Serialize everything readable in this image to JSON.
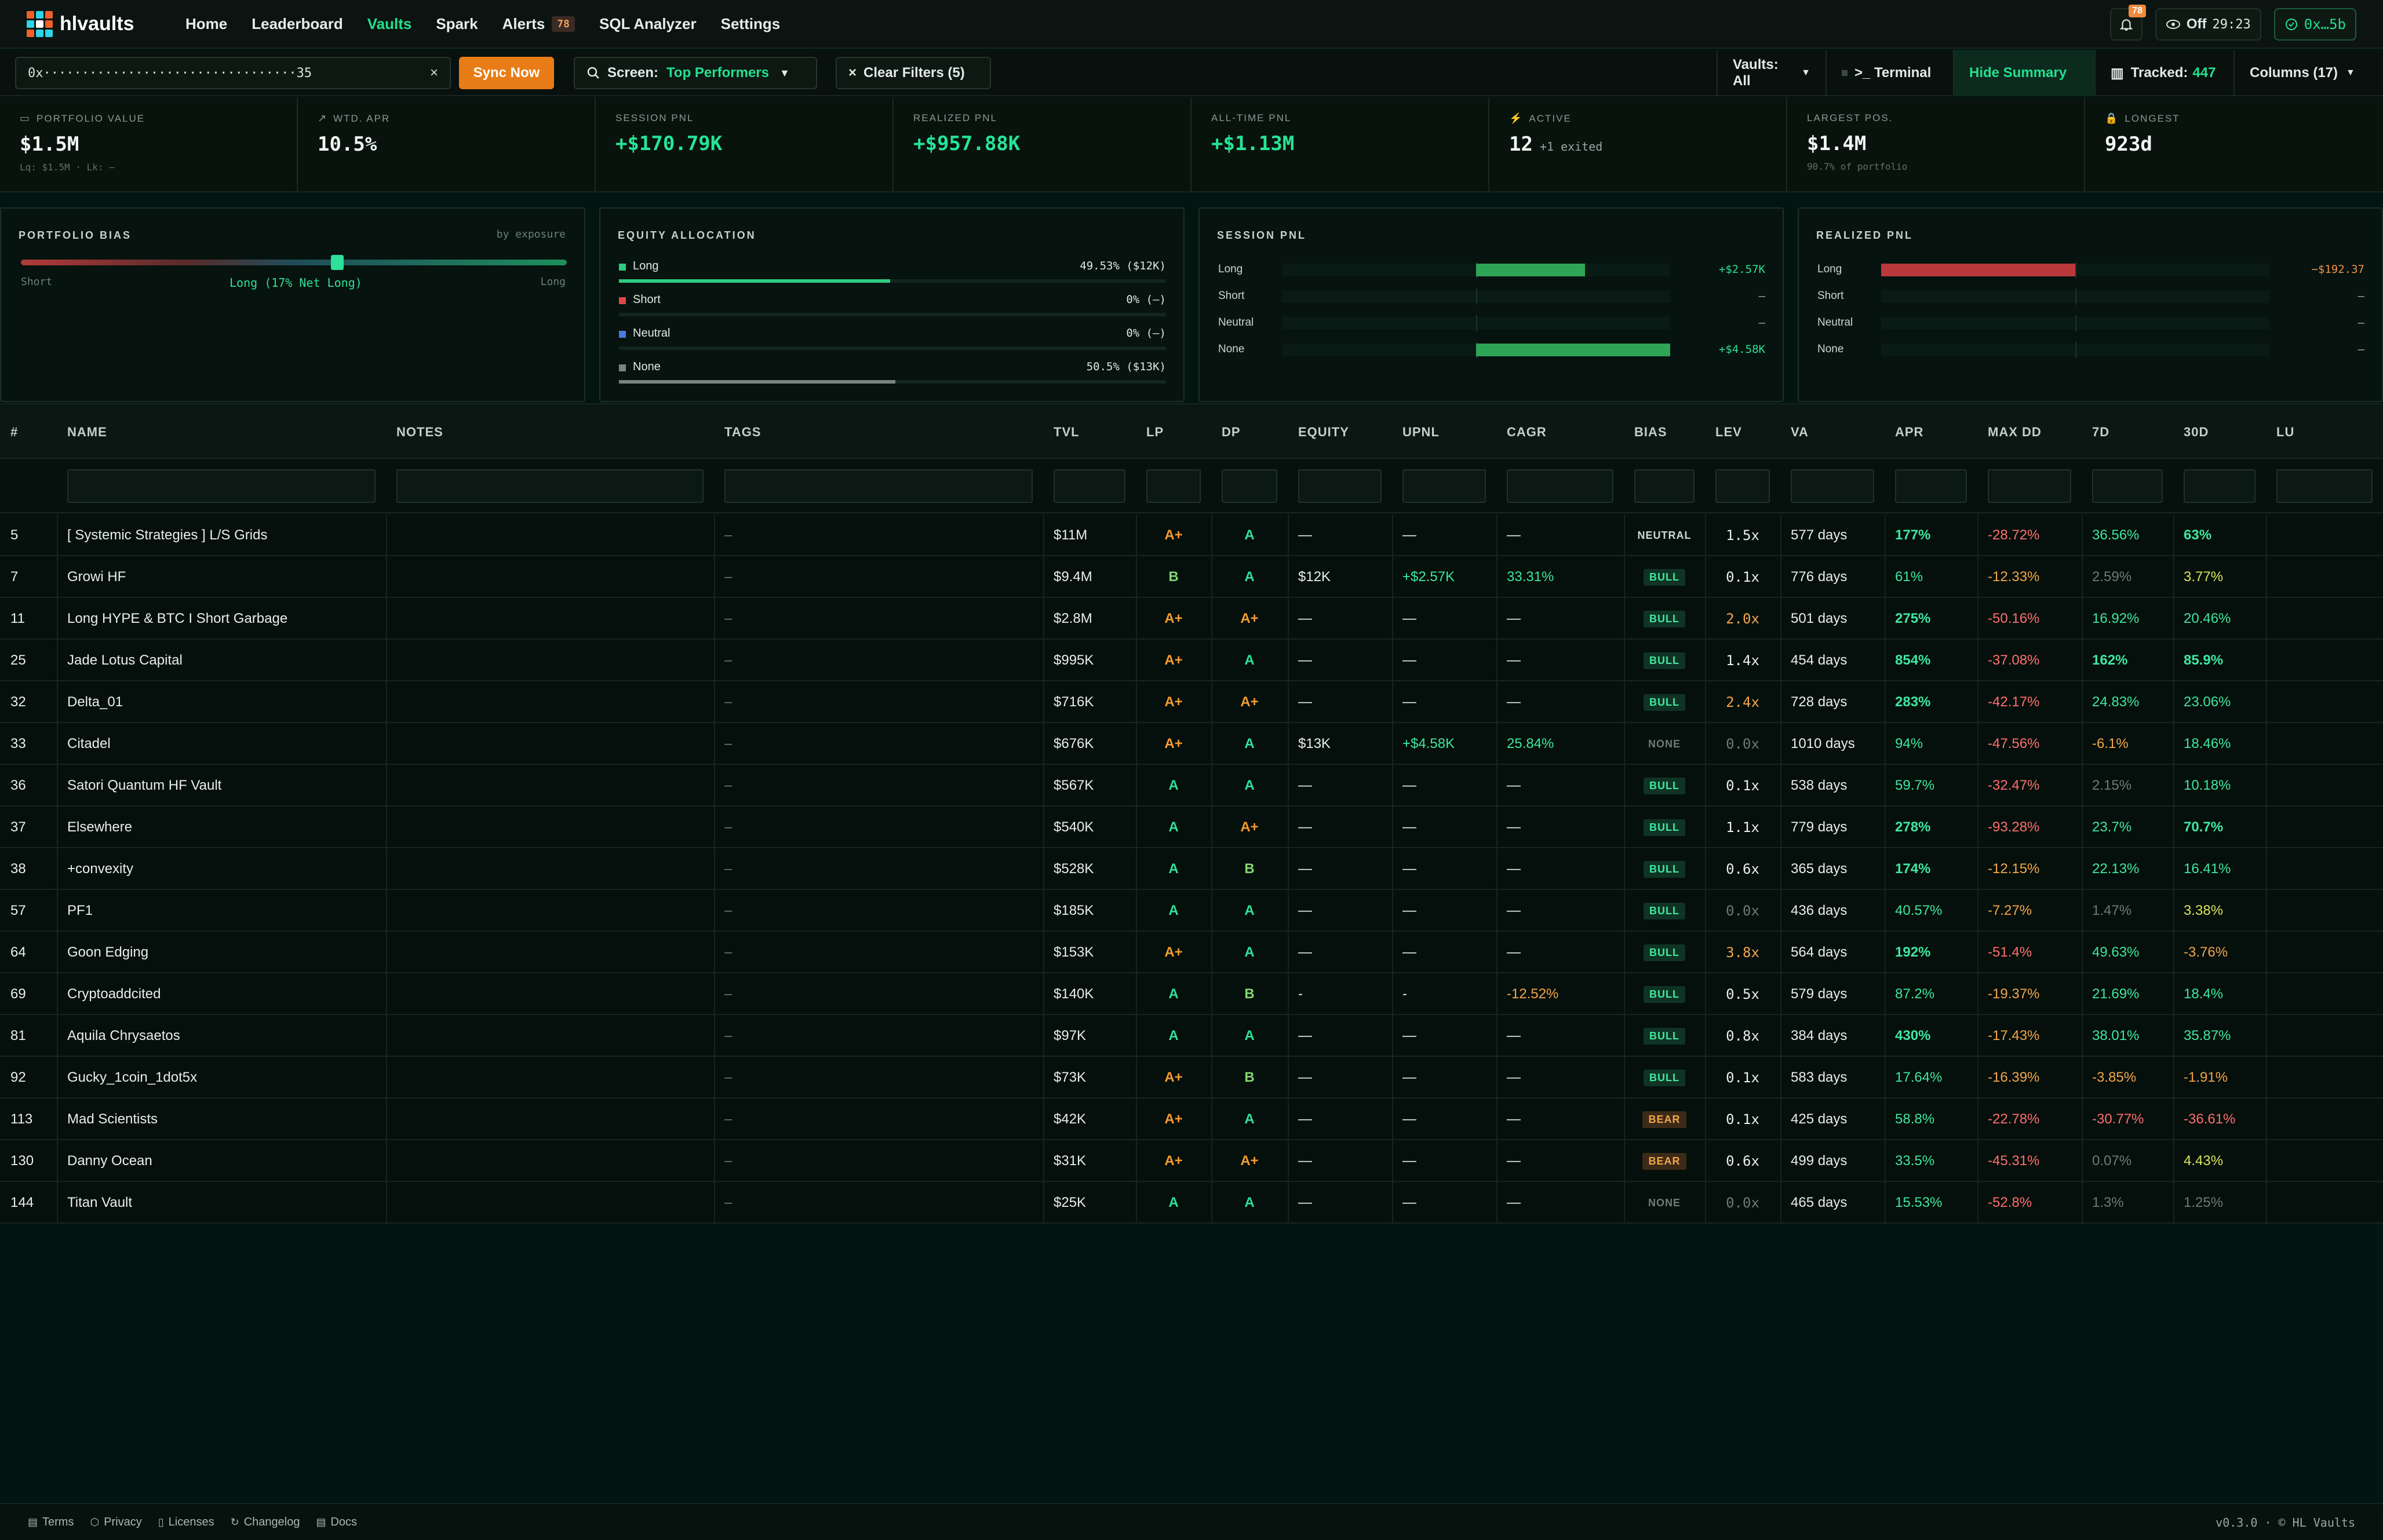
{
  "nav": {
    "brand": "hlvaults",
    "links": [
      {
        "label": "Home",
        "active": false
      },
      {
        "label": "Leaderboard",
        "active": false
      },
      {
        "label": "Vaults",
        "active": true
      },
      {
        "label": "Spark",
        "active": false
      },
      {
        "label": "Alerts",
        "active": false,
        "badge": "78"
      },
      {
        "label": "SQL Analyzer",
        "active": false
      },
      {
        "label": "Settings",
        "active": false
      }
    ],
    "bell_badge": "78",
    "timer_label": "Off",
    "timer_value": "29:23",
    "wallet": "0x…5b"
  },
  "toolbar": {
    "address_value": "0x·································35",
    "sync_label": "Sync Now",
    "screen_label": "Screen:",
    "screen_value": "Top Performers",
    "clear_label": "Clear Filters (5)",
    "vaults_label": "Vaults: All",
    "terminal_label": ">_ Terminal",
    "hide_summary_label": "Hide Summary",
    "tracked_label": "Tracked:",
    "tracked_value": "447",
    "columns_label": "Columns (17)"
  },
  "stats": [
    {
      "label": "PORTFOLIO VALUE",
      "value": "$1.5M",
      "sub": "Lq: $1.5M · Lk: —"
    },
    {
      "label": "WTD. APR",
      "value": "10.5%",
      "sub": ""
    },
    {
      "label": "SESSION PNL",
      "value": "+$170.79K",
      "sub": ""
    },
    {
      "label": "REALIZED PNL",
      "value": "+$957.88K",
      "sub": ""
    },
    {
      "label": "ALL-TIME PNL",
      "value": "+$1.13M",
      "sub": ""
    },
    {
      "label": "ACTIVE",
      "value": "12",
      "value_suffix": "+1 exited",
      "sub": ""
    },
    {
      "label": "LARGEST POS.",
      "value": "$1.4M",
      "sub": "90.7% of portfolio"
    },
    {
      "label": "LONGEST",
      "value": "923d",
      "sub": ""
    }
  ],
  "bias": {
    "title": "PORTFOLIO BIAS",
    "by": "by exposure",
    "left": "Short",
    "center": "Long (17% Net Long)",
    "right": "Long",
    "position": 0.58
  },
  "allocation": {
    "title": "EQUITY ALLOCATION",
    "rows": [
      {
        "label": "Long",
        "value": "49.53% ($12K)",
        "fill": 0.4953,
        "color": "#2ecb80"
      },
      {
        "label": "Short",
        "value": "0% (—)",
        "fill": 0,
        "color": "#e04848"
      },
      {
        "label": "Neutral",
        "value": "0% (—)",
        "fill": 0,
        "color": "#4a7ae0"
      },
      {
        "label": "None",
        "value": "50.5% ($13K)",
        "fill": 0.505,
        "color": "#7a8580"
      }
    ]
  },
  "session_pnl": {
    "title": "SESSION PNL",
    "rows": [
      {
        "label": "Long",
        "value": "+$2.57K",
        "amount": 2.57
      },
      {
        "label": "Short",
        "value": "—",
        "amount": 0
      },
      {
        "label": "Neutral",
        "value": "—",
        "amount": 0
      },
      {
        "label": "None",
        "value": "+$4.58K",
        "amount": 4.58
      }
    ]
  },
  "realized_pnl": {
    "title": "REALIZED PNL",
    "rows": [
      {
        "label": "Long",
        "value": "−$192.37",
        "amount": -192.37
      },
      {
        "label": "Short",
        "value": "—",
        "amount": 0
      },
      {
        "label": "Neutral",
        "value": "—",
        "amount": 0
      },
      {
        "label": "None",
        "value": "—",
        "amount": 0
      }
    ]
  },
  "table": {
    "headers": [
      "#",
      "NAME",
      "NOTES",
      "TAGS",
      "TVL",
      "LP",
      "DP",
      "EQUITY",
      "UPNL",
      "CAGR",
      "BIAS",
      "LEV",
      "VA",
      "APR",
      "MAX DD",
      "7D",
      "30D",
      "LU"
    ],
    "rows": [
      {
        "id": "5",
        "name": "[ Systemic Strategies ] L/S Grids",
        "tags": "–",
        "tvl": "$11M",
        "lp": "A+",
        "dp": "A",
        "equity": "—",
        "upnl": "—",
        "cagr": "—",
        "bias": "NEUTRAL",
        "lev": "1.5x",
        "va": "577 days",
        "apr": "177%",
        "maxdd": "-28.72%",
        "d7": "36.56%",
        "d30": "63%"
      },
      {
        "id": "7",
        "name": "Growi HF",
        "tags": "–",
        "tvl": "$9.4M",
        "lp": "B",
        "dp": "A",
        "equity": "$12K",
        "upnl": "+$2.57K",
        "cagr": "33.31%",
        "bias": "BULL",
        "lev": "0.1x",
        "va": "776 days",
        "apr": "61%",
        "maxdd": "-12.33%",
        "d7": "2.59%",
        "d30": "3.77%"
      },
      {
        "id": "11",
        "name": "Long HYPE & BTC I Short Garbage",
        "tags": "–",
        "tvl": "$2.8M",
        "lp": "A+",
        "dp": "A+",
        "equity": "—",
        "upnl": "—",
        "cagr": "—",
        "bias": "BULL",
        "lev": "2.0x",
        "va": "501 days",
        "apr": "275%",
        "maxdd": "-50.16%",
        "d7": "16.92%",
        "d30": "20.46%"
      },
      {
        "id": "25",
        "name": "Jade Lotus Capital",
        "tags": "–",
        "tvl": "$995K",
        "lp": "A+",
        "dp": "A",
        "equity": "—",
        "upnl": "—",
        "cagr": "—",
        "bias": "BULL",
        "lev": "1.4x",
        "va": "454 days",
        "apr": "854%",
        "maxdd": "-37.08%",
        "d7": "162%",
        "d30": "85.9%"
      },
      {
        "id": "32",
        "name": "Delta_01",
        "tags": "–",
        "tvl": "$716K",
        "lp": "A+",
        "dp": "A+",
        "equity": "—",
        "upnl": "—",
        "cagr": "—",
        "bias": "BULL",
        "lev": "2.4x",
        "va": "728 days",
        "apr": "283%",
        "maxdd": "-42.17%",
        "d7": "24.83%",
        "d30": "23.06%"
      },
      {
        "id": "33",
        "name": "Citadel",
        "tags": "–",
        "tvl": "$676K",
        "lp": "A+",
        "dp": "A",
        "equity": "$13K",
        "upnl": "+$4.58K",
        "cagr": "25.84%",
        "bias": "NONE",
        "lev": "0.0x",
        "va": "1010 days",
        "apr": "94%",
        "maxdd": "-47.56%",
        "d7": "-6.1%",
        "d30": "18.46%"
      },
      {
        "id": "36",
        "name": "Satori Quantum HF Vault",
        "tags": "–",
        "tvl": "$567K",
        "lp": "A",
        "dp": "A",
        "equity": "—",
        "upnl": "—",
        "cagr": "—",
        "bias": "BULL",
        "lev": "0.1x",
        "va": "538 days",
        "apr": "59.7%",
        "maxdd": "-32.47%",
        "d7": "2.15%",
        "d30": "10.18%"
      },
      {
        "id": "37",
        "name": "Elsewhere",
        "tags": "–",
        "tvl": "$540K",
        "lp": "A",
        "dp": "A+",
        "equity": "—",
        "upnl": "—",
        "cagr": "—",
        "bias": "BULL",
        "lev": "1.1x",
        "va": "779 days",
        "apr": "278%",
        "maxdd": "-93.28%",
        "d7": "23.7%",
        "d30": "70.7%"
      },
      {
        "id": "38",
        "name": "+convexity",
        "tags": "–",
        "tvl": "$528K",
        "lp": "A",
        "dp": "B",
        "equity": "—",
        "upnl": "—",
        "cagr": "—",
        "bias": "BULL",
        "lev": "0.6x",
        "va": "365 days",
        "apr": "174%",
        "maxdd": "-12.15%",
        "d7": "22.13%",
        "d30": "16.41%"
      },
      {
        "id": "57",
        "name": "PF1",
        "tags": "–",
        "tvl": "$185K",
        "lp": "A",
        "dp": "A",
        "equity": "—",
        "upnl": "—",
        "cagr": "—",
        "bias": "BULL",
        "lev": "0.0x",
        "va": "436 days",
        "apr": "40.57%",
        "maxdd": "-7.27%",
        "d7": "1.47%",
        "d30": "3.38%"
      },
      {
        "id": "64",
        "name": "Goon Edging",
        "tags": "–",
        "tvl": "$153K",
        "lp": "A+",
        "dp": "A",
        "equity": "—",
        "upnl": "—",
        "cagr": "—",
        "bias": "BULL",
        "lev": "3.8x",
        "va": "564 days",
        "apr": "192%",
        "maxdd": "-51.4%",
        "d7": "49.63%",
        "d30": "-3.76%"
      },
      {
        "id": "69",
        "name": "Cryptoaddcited",
        "tags": "–",
        "tvl": "$140K",
        "lp": "A",
        "dp": "B",
        "equity": "-",
        "upnl": "-",
        "cagr": "-12.52%",
        "bias": "BULL",
        "lev": "0.5x",
        "va": "579 days",
        "apr": "87.2%",
        "maxdd": "-19.37%",
        "d7": "21.69%",
        "d30": "18.4%"
      },
      {
        "id": "81",
        "name": "Aquila Chrysaetos",
        "tags": "–",
        "tvl": "$97K",
        "lp": "A",
        "dp": "A",
        "equity": "—",
        "upnl": "—",
        "cagr": "—",
        "bias": "BULL",
        "lev": "0.8x",
        "va": "384 days",
        "apr": "430%",
        "maxdd": "-17.43%",
        "d7": "38.01%",
        "d30": "35.87%"
      },
      {
        "id": "92",
        "name": "Gucky_1coin_1dot5x",
        "tags": "–",
        "tvl": "$73K",
        "lp": "A+",
        "dp": "B",
        "equity": "—",
        "upnl": "—",
        "cagr": "—",
        "bias": "BULL",
        "lev": "0.1x",
        "va": "583 days",
        "apr": "17.64%",
        "maxdd": "-16.39%",
        "d7": "-3.85%",
        "d30": "-1.91%"
      },
      {
        "id": "113",
        "name": "Mad Scientists",
        "tags": "–",
        "tvl": "$42K",
        "lp": "A+",
        "dp": "A",
        "equity": "—",
        "upnl": "—",
        "cagr": "—",
        "bias": "BEAR",
        "lev": "0.1x",
        "va": "425 days",
        "apr": "58.8%",
        "maxdd": "-22.78%",
        "d7": "-30.77%",
        "d30": "-36.61%"
      },
      {
        "id": "130",
        "name": "Danny Ocean",
        "tags": "–",
        "tvl": "$31K",
        "lp": "A+",
        "dp": "A+",
        "equity": "—",
        "upnl": "—",
        "cagr": "—",
        "bias": "BEAR",
        "lev": "0.6x",
        "va": "499 days",
        "apr": "33.5%",
        "maxdd": "-45.31%",
        "d7": "0.07%",
        "d30": "4.43%"
      },
      {
        "id": "144",
        "name": "Titan Vault",
        "tags": "–",
        "tvl": "$25K",
        "lp": "A",
        "dp": "A",
        "equity": "—",
        "upnl": "—",
        "cagr": "—",
        "bias": "NONE",
        "lev": "0.0x",
        "va": "465 days",
        "apr": "15.53%",
        "maxdd": "-52.8%",
        "d7": "1.3%",
        "d30": "1.25%"
      }
    ]
  },
  "footer": {
    "links": [
      "Terms",
      "Privacy",
      "Licenses",
      "Changelog",
      "Docs"
    ],
    "version": "v0.3.0 · © HL Vaults"
  },
  "colors": {
    "accent": "#22e08f",
    "orange": "#e87c16",
    "bg": "#031510"
  }
}
